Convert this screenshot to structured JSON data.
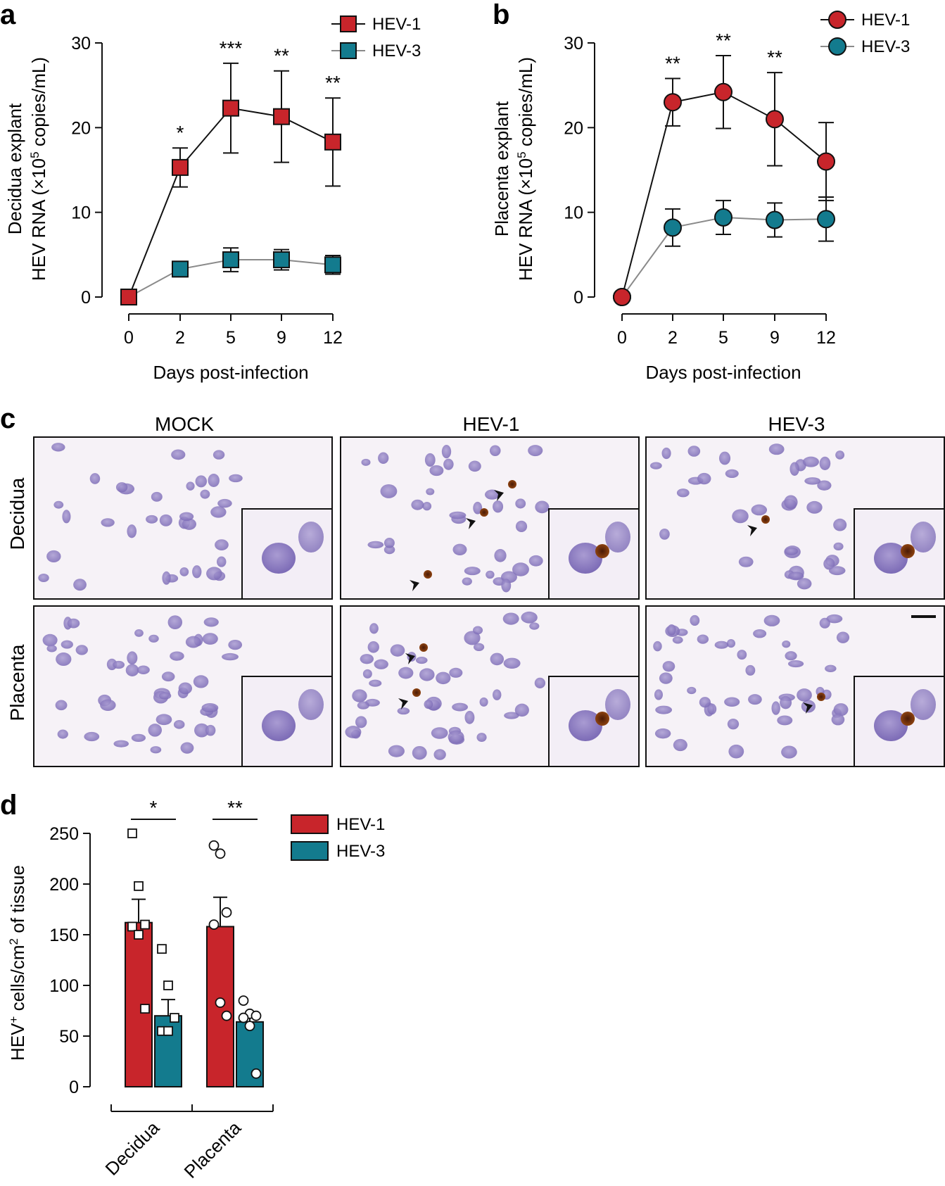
{
  "panels": {
    "a": "a",
    "b": "b",
    "c": "c",
    "d": "d"
  },
  "colors": {
    "hev1": "#c8252b",
    "hev3": "#137b8e",
    "hev3_line": "#8a8a8a"
  },
  "chart_data": [
    {
      "type": "line",
      "panel": "a",
      "marker": "square",
      "xlabel": "Days post-infection",
      "ylabel_line1": "Decidua explant",
      "ylabel_line2_pre": "HEV RNA (×10",
      "ylabel_sup": "5",
      "ylabel_line2_post": " copies/mL)",
      "categories": [
        "0",
        "2",
        "5",
        "9",
        "12"
      ],
      "ylim": [
        0,
        30
      ],
      "yticks": [
        "0",
        "10",
        "20",
        "30"
      ],
      "series": [
        {
          "name": "HEV-1",
          "values": [
            0,
            15.3,
            22.3,
            21.3,
            18.3
          ],
          "errors": [
            0,
            2.3,
            5.3,
            5.4,
            5.2
          ]
        },
        {
          "name": "HEV-3",
          "values": [
            0,
            3.3,
            4.4,
            4.4,
            3.8
          ],
          "errors": [
            0,
            0.9,
            1.4,
            1.2,
            1.1
          ]
        }
      ],
      "significance": [
        "",
        "*",
        "***",
        "**",
        "**"
      ],
      "legend": [
        "HEV-1",
        "HEV-3"
      ],
      "legend_position": "top-right"
    },
    {
      "type": "line",
      "panel": "b",
      "marker": "circle",
      "xlabel": "Days post-infection",
      "ylabel_line1": "Placenta explant",
      "ylabel_line2_pre": "HEV RNA (×10",
      "ylabel_sup": "5",
      "ylabel_line2_post": " copies/mL)",
      "categories": [
        "0",
        "2",
        "5",
        "9",
        "12"
      ],
      "ylim": [
        0,
        30
      ],
      "yticks": [
        "0",
        "10",
        "20",
        "30"
      ],
      "series": [
        {
          "name": "HEV-1",
          "values": [
            0,
            23.0,
            24.2,
            21.0,
            16.0
          ],
          "errors": [
            0,
            2.8,
            4.3,
            5.5,
            4.6
          ]
        },
        {
          "name": "HEV-3",
          "values": [
            0,
            8.2,
            9.4,
            9.1,
            9.2
          ],
          "errors": [
            0,
            2.2,
            2.0,
            2.0,
            2.6
          ]
        }
      ],
      "significance": [
        "",
        "**",
        "**",
        "**",
        ""
      ],
      "legend": [
        "HEV-1",
        "HEV-3"
      ],
      "legend_position": "top-right"
    },
    {
      "type": "bar",
      "panel": "d",
      "categories": [
        "Decidua",
        "Placenta"
      ],
      "ylabel_pre": "HEV",
      "ylabel_sup1": "+",
      "ylabel_mid": " cells/cm",
      "ylabel_sup2": "2",
      "ylabel_post": " of tissue",
      "ylim": [
        0,
        250
      ],
      "yticks": [
        "0",
        "50",
        "100",
        "150",
        "200",
        "250"
      ],
      "series": [
        {
          "name": "HEV-1",
          "values": [
            162,
            158
          ],
          "errors": [
            23,
            29
          ],
          "points": [
            [
              250,
              198,
              160,
              158,
              150,
              77
            ],
            [
              238,
              230,
              172,
              160,
              83,
              70
            ]
          ]
        },
        {
          "name": "HEV-3",
          "values": [
            70,
            64
          ],
          "errors": [
            16,
            8
          ],
          "points": [
            [
              136,
              100,
              68,
              55,
              55
            ],
            [
              85,
              72,
              70,
              68,
              60,
              13
            ]
          ]
        }
      ],
      "significance": [
        "*",
        "**"
      ],
      "legend": [
        "HEV-1",
        "HEV-3"
      ],
      "legend_position": "top-right"
    }
  ],
  "micrographs": {
    "columns": [
      "MOCK",
      "HEV-1",
      "HEV-3"
    ],
    "rows": [
      "Decidua",
      "Placenta"
    ]
  }
}
